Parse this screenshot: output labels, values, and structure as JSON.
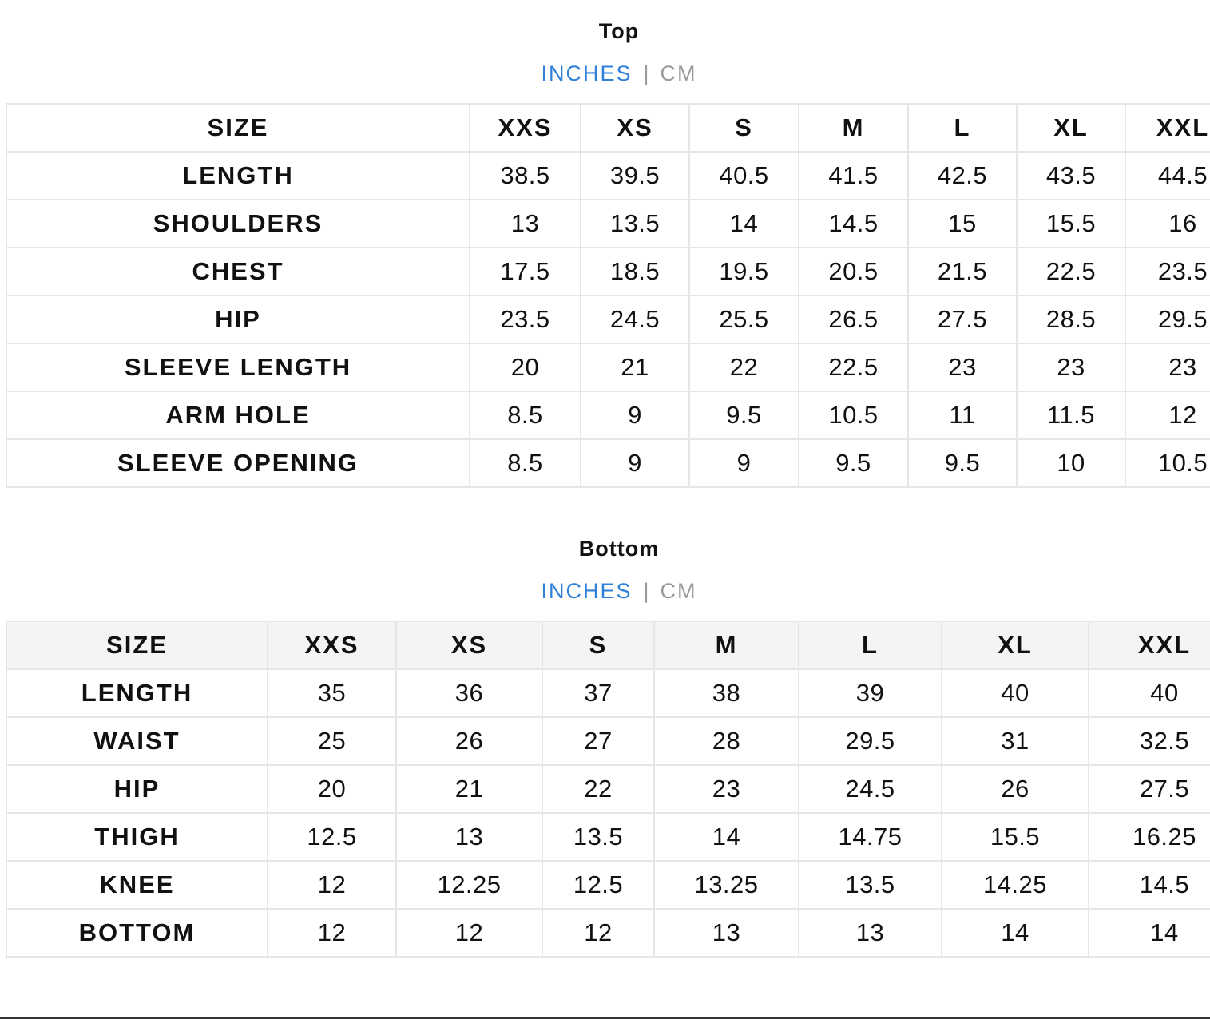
{
  "top": {
    "title": "Top",
    "units": {
      "active": "INCHES",
      "separator": "|",
      "inactive": "CM"
    },
    "sizes": [
      "XXS",
      "XS",
      "S",
      "M",
      "L",
      "XL",
      "XXL"
    ],
    "header_label": "SIZE",
    "rows": [
      {
        "label": "LENGTH",
        "values": [
          "38.5",
          "39.5",
          "40.5",
          "41.5",
          "42.5",
          "43.5",
          "44.5"
        ]
      },
      {
        "label": "SHOULDERS",
        "values": [
          "13",
          "13.5",
          "14",
          "14.5",
          "15",
          "15.5",
          "16"
        ]
      },
      {
        "label": "CHEST",
        "values": [
          "17.5",
          "18.5",
          "19.5",
          "20.5",
          "21.5",
          "22.5",
          "23.5"
        ]
      },
      {
        "label": "HIP",
        "values": [
          "23.5",
          "24.5",
          "25.5",
          "26.5",
          "27.5",
          "28.5",
          "29.5"
        ]
      },
      {
        "label": "SLEEVE LENGTH",
        "values": [
          "20",
          "21",
          "22",
          "22.5",
          "23",
          "23",
          "23"
        ]
      },
      {
        "label": "ARM HOLE",
        "values": [
          "8.5",
          "9",
          "9.5",
          "10.5",
          "11",
          "11.5",
          "12"
        ]
      },
      {
        "label": "SLEEVE OPENING",
        "values": [
          "8.5",
          "9",
          "9",
          "9.5",
          "9.5",
          "10",
          "10.5"
        ]
      }
    ]
  },
  "bottom": {
    "title": "Bottom",
    "units": {
      "active": "INCHES",
      "separator": "|",
      "inactive": "CM"
    },
    "sizes": [
      "XXS",
      "XS",
      "S",
      "M",
      "L",
      "XL",
      "XXL"
    ],
    "header_label": "SIZE",
    "rows": [
      {
        "label": "LENGTH",
        "values": [
          "35",
          "36",
          "37",
          "38",
          "39",
          "40",
          "40"
        ]
      },
      {
        "label": "WAIST",
        "values": [
          "25",
          "26",
          "27",
          "28",
          "29.5",
          "31",
          "32.5"
        ]
      },
      {
        "label": "HIP",
        "values": [
          "20",
          "21",
          "22",
          "23",
          "24.5",
          "26",
          "27.5"
        ]
      },
      {
        "label": "THIGH",
        "values": [
          "12.5",
          "13",
          "13.5",
          "14",
          "14.75",
          "15.5",
          "16.25"
        ]
      },
      {
        "label": "KNEE",
        "values": [
          "12",
          "12.25",
          "12.5",
          "13.25",
          "13.5",
          "14.25",
          "14.5"
        ]
      },
      {
        "label": "BOTTOM",
        "values": [
          "12",
          "12",
          "12",
          "13",
          "13",
          "14",
          "14"
        ]
      }
    ]
  }
}
